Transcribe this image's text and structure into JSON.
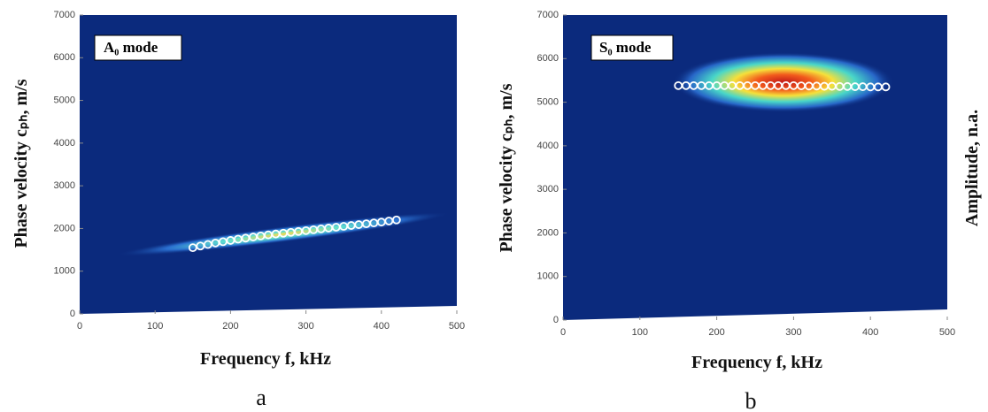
{
  "chart_data": [
    {
      "type": "scatter",
      "panel_label": "a",
      "title": "A₀ mode",
      "xlabel": "Frequency f, kHz",
      "ylabel": "Phase velocity cₚₕ, m/s",
      "xlim": [
        0,
        500
      ],
      "xticks": [
        0,
        100,
        200,
        300,
        400,
        500
      ],
      "ylim": [
        0,
        7000
      ],
      "yticks": [
        0,
        1000,
        2000,
        3000,
        4000,
        5000,
        6000,
        7000
      ],
      "series": [
        {
          "color": "#ffffff",
          "x": [
            150,
            160,
            170,
            180,
            190,
            200,
            210,
            220,
            230,
            240,
            250,
            260,
            270,
            280,
            290,
            300,
            310,
            320,
            330,
            340,
            350,
            360,
            370,
            380,
            390,
            400,
            410,
            420
          ],
          "values": [
            1550,
            1590,
            1625,
            1660,
            1690,
            1720,
            1750,
            1775,
            1800,
            1825,
            1850,
            1870,
            1890,
            1910,
            1930,
            1950,
            1970,
            1990,
            2010,
            2030,
            2050,
            2070,
            2090,
            2110,
            2130,
            2150,
            2175,
            2200
          ]
        }
      ]
    },
    {
      "type": "scatter",
      "panel_label": "b",
      "title": "S₀ mode",
      "xlabel": "Frequency f, kHz",
      "ylabel": "Phase velocity cₚₕ, m/s",
      "colorbar_label": "Amplitude, n.a.",
      "xlim": [
        0,
        500
      ],
      "xticks": [
        0,
        100,
        200,
        300,
        400,
        500
      ],
      "ylim": [
        0,
        7000
      ],
      "yticks": [
        0,
        1000,
        2000,
        3000,
        4000,
        5000,
        6000,
        7000
      ],
      "series": [
        {
          "color": "#ffffff",
          "x": [
            150,
            160,
            170,
            180,
            190,
            200,
            210,
            220,
            230,
            240,
            250,
            260,
            270,
            280,
            290,
            300,
            310,
            320,
            330,
            340,
            350,
            360,
            370,
            380,
            390,
            400,
            410,
            420
          ],
          "values": [
            5380,
            5380,
            5380,
            5380,
            5380,
            5380,
            5380,
            5380,
            5380,
            5380,
            5380,
            5380,
            5380,
            5380,
            5380,
            5380,
            5375,
            5370,
            5370,
            5365,
            5365,
            5360,
            5360,
            5355,
            5355,
            5350,
            5350,
            5350
          ]
        }
      ]
    }
  ]
}
